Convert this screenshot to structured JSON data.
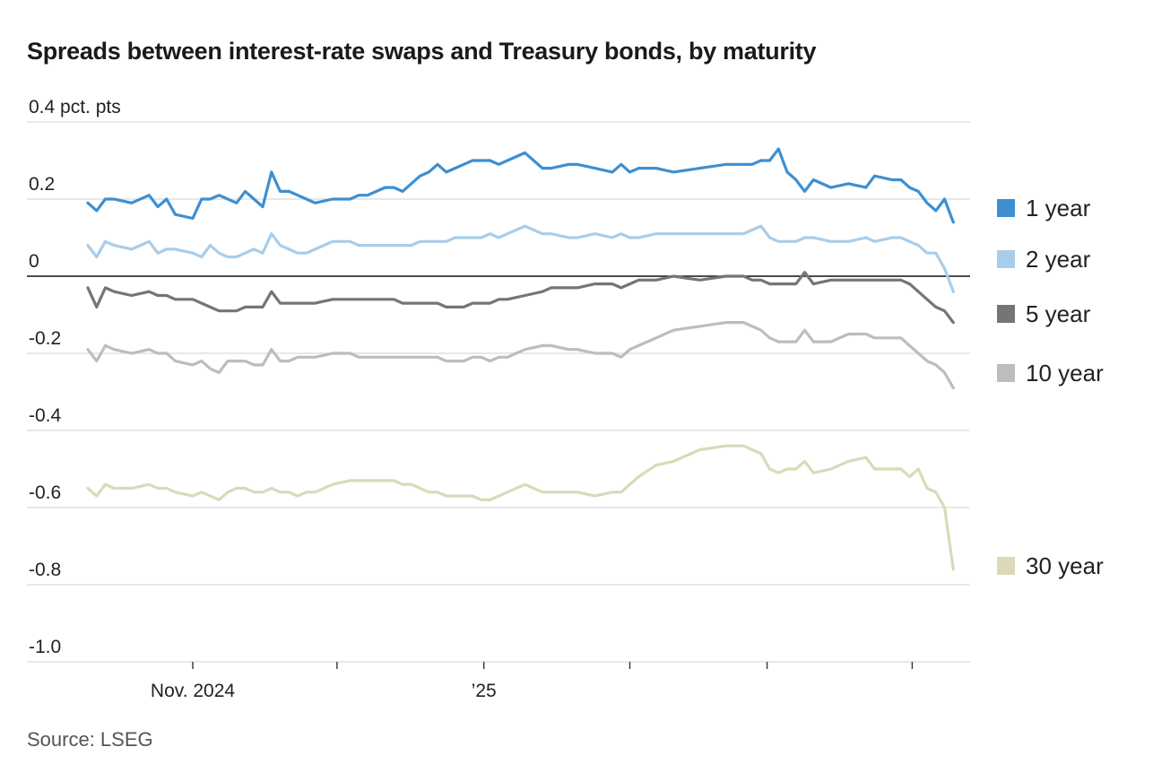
{
  "title": "Spreads between interest-rate swaps and Treasury bonds, by maturity",
  "source": "Source: LSEG",
  "chart_data": {
    "type": "line",
    "ylabel": "pct. pts",
    "ylim": [
      -1.0,
      0.4
    ],
    "yticks": [
      {
        "value": 0.4,
        "label": "0.4 pct. pts"
      },
      {
        "value": 0.2,
        "label": "0.2"
      },
      {
        "value": 0.0,
        "label": "0"
      },
      {
        "value": -0.2,
        "label": "-0.2"
      },
      {
        "value": -0.4,
        "label": "-0.4"
      },
      {
        "value": -0.6,
        "label": "-0.6"
      },
      {
        "value": -0.8,
        "label": "-0.8"
      },
      {
        "value": -1.0,
        "label": "-1.0"
      }
    ],
    "x_range": [
      0,
      100
    ],
    "xticks": [
      {
        "x": 12,
        "label": "Nov. 2024"
      },
      {
        "x": 28.5,
        "label": ""
      },
      {
        "x": 45.3,
        "label": "’25"
      },
      {
        "x": 62,
        "label": ""
      },
      {
        "x": 77.7,
        "label": ""
      },
      {
        "x": 94.3,
        "label": ""
      }
    ],
    "series": [
      {
        "name": "1 year",
        "color": "#3d8fd1",
        "x": [
          0,
          1,
          2,
          3,
          5,
          7,
          8,
          9,
          10,
          12,
          13,
          14,
          15,
          16,
          17,
          18,
          19,
          20,
          21,
          22,
          23,
          24,
          25,
          26,
          28,
          30,
          31,
          32,
          33,
          34,
          35,
          36,
          37,
          38,
          39,
          40,
          41,
          42,
          43,
          44,
          45,
          46,
          47,
          48,
          50,
          52,
          53,
          55,
          56,
          58,
          60,
          61,
          62,
          63,
          65,
          67,
          70,
          73,
          75,
          76,
          77,
          78,
          79,
          80,
          81,
          82,
          83,
          85,
          87,
          89,
          90,
          92,
          93,
          94,
          95,
          96,
          97,
          98,
          99
        ],
        "y": [
          0.19,
          0.17,
          0.2,
          0.2,
          0.19,
          0.21,
          0.18,
          0.2,
          0.16,
          0.15,
          0.2,
          0.2,
          0.21,
          0.2,
          0.19,
          0.22,
          0.2,
          0.18,
          0.27,
          0.22,
          0.22,
          0.21,
          0.2,
          0.19,
          0.2,
          0.2,
          0.21,
          0.21,
          0.22,
          0.23,
          0.23,
          0.22,
          0.24,
          0.26,
          0.27,
          0.29,
          0.27,
          0.28,
          0.29,
          0.3,
          0.3,
          0.3,
          0.29,
          0.3,
          0.32,
          0.28,
          0.28,
          0.29,
          0.29,
          0.28,
          0.27,
          0.29,
          0.27,
          0.28,
          0.28,
          0.27,
          0.28,
          0.29,
          0.29,
          0.29,
          0.3,
          0.3,
          0.33,
          0.27,
          0.25,
          0.22,
          0.25,
          0.23,
          0.24,
          0.23,
          0.26,
          0.25,
          0.25,
          0.23,
          0.22,
          0.19,
          0.17,
          0.2,
          0.14
        ]
      },
      {
        "name": "2 year",
        "color": "#a8cdea",
        "x": [
          0,
          1,
          2,
          3,
          5,
          7,
          8,
          9,
          10,
          12,
          13,
          14,
          15,
          16,
          17,
          18,
          19,
          20,
          21,
          22,
          23,
          24,
          25,
          26,
          28,
          30,
          31,
          32,
          33,
          34,
          35,
          36,
          37,
          38,
          39,
          40,
          41,
          42,
          43,
          44,
          45,
          46,
          47,
          48,
          50,
          52,
          53,
          55,
          56,
          58,
          60,
          61,
          62,
          63,
          65,
          67,
          70,
          73,
          75,
          76,
          77,
          78,
          79,
          80,
          81,
          82,
          83,
          85,
          87,
          89,
          90,
          92,
          93,
          94,
          95,
          96,
          97,
          98,
          99
        ],
        "y": [
          0.08,
          0.05,
          0.09,
          0.08,
          0.07,
          0.09,
          0.06,
          0.07,
          0.07,
          0.06,
          0.05,
          0.08,
          0.06,
          0.05,
          0.05,
          0.06,
          0.07,
          0.06,
          0.11,
          0.08,
          0.07,
          0.06,
          0.06,
          0.07,
          0.09,
          0.09,
          0.08,
          0.08,
          0.08,
          0.08,
          0.08,
          0.08,
          0.08,
          0.09,
          0.09,
          0.09,
          0.09,
          0.1,
          0.1,
          0.1,
          0.1,
          0.11,
          0.1,
          0.11,
          0.13,
          0.11,
          0.11,
          0.1,
          0.1,
          0.11,
          0.1,
          0.11,
          0.1,
          0.1,
          0.11,
          0.11,
          0.11,
          0.11,
          0.11,
          0.12,
          0.13,
          0.1,
          0.09,
          0.09,
          0.09,
          0.1,
          0.1,
          0.09,
          0.09,
          0.1,
          0.09,
          0.1,
          0.1,
          0.09,
          0.08,
          0.06,
          0.06,
          0.02,
          -0.04
        ]
      },
      {
        "name": "5 year",
        "color": "#757575",
        "x": [
          0,
          1,
          2,
          3,
          5,
          7,
          8,
          9,
          10,
          12,
          13,
          14,
          15,
          16,
          17,
          18,
          19,
          20,
          21,
          22,
          23,
          24,
          25,
          26,
          28,
          30,
          31,
          32,
          33,
          34,
          35,
          36,
          37,
          38,
          39,
          40,
          41,
          42,
          43,
          44,
          45,
          46,
          47,
          48,
          50,
          52,
          53,
          55,
          56,
          58,
          60,
          61,
          62,
          63,
          65,
          67,
          70,
          73,
          75,
          76,
          77,
          78,
          79,
          80,
          81,
          82,
          83,
          85,
          87,
          89,
          90,
          92,
          93,
          94,
          95,
          96,
          97,
          98,
          99
        ],
        "y": [
          -0.03,
          -0.08,
          -0.03,
          -0.04,
          -0.05,
          -0.04,
          -0.05,
          -0.05,
          -0.06,
          -0.06,
          -0.07,
          -0.08,
          -0.09,
          -0.09,
          -0.09,
          -0.08,
          -0.08,
          -0.08,
          -0.04,
          -0.07,
          -0.07,
          -0.07,
          -0.07,
          -0.07,
          -0.06,
          -0.06,
          -0.06,
          -0.06,
          -0.06,
          -0.06,
          -0.06,
          -0.07,
          -0.07,
          -0.07,
          -0.07,
          -0.07,
          -0.08,
          -0.08,
          -0.08,
          -0.07,
          -0.07,
          -0.07,
          -0.06,
          -0.06,
          -0.05,
          -0.04,
          -0.03,
          -0.03,
          -0.03,
          -0.02,
          -0.02,
          -0.03,
          -0.02,
          -0.01,
          -0.01,
          0.0,
          -0.01,
          0.0,
          0.0,
          -0.01,
          -0.01,
          -0.02,
          -0.02,
          -0.02,
          -0.02,
          0.01,
          -0.02,
          -0.01,
          -0.01,
          -0.01,
          -0.01,
          -0.01,
          -0.01,
          -0.02,
          -0.04,
          -0.06,
          -0.08,
          -0.09,
          -0.12
        ]
      },
      {
        "name": "10 year",
        "color": "#bdbdbd",
        "x": [
          0,
          1,
          2,
          3,
          5,
          7,
          8,
          9,
          10,
          12,
          13,
          14,
          15,
          16,
          17,
          18,
          19,
          20,
          21,
          22,
          23,
          24,
          25,
          26,
          28,
          30,
          31,
          32,
          33,
          34,
          35,
          36,
          37,
          38,
          39,
          40,
          41,
          42,
          43,
          44,
          45,
          46,
          47,
          48,
          50,
          52,
          53,
          55,
          56,
          58,
          60,
          61,
          62,
          63,
          65,
          67,
          70,
          73,
          75,
          76,
          77,
          78,
          79,
          80,
          81,
          82,
          83,
          85,
          87,
          89,
          90,
          92,
          93,
          94,
          95,
          96,
          97,
          98,
          99
        ],
        "y": [
          -0.19,
          -0.22,
          -0.18,
          -0.19,
          -0.2,
          -0.19,
          -0.2,
          -0.2,
          -0.22,
          -0.23,
          -0.22,
          -0.24,
          -0.25,
          -0.22,
          -0.22,
          -0.22,
          -0.23,
          -0.23,
          -0.19,
          -0.22,
          -0.22,
          -0.21,
          -0.21,
          -0.21,
          -0.2,
          -0.2,
          -0.21,
          -0.21,
          -0.21,
          -0.21,
          -0.21,
          -0.21,
          -0.21,
          -0.21,
          -0.21,
          -0.21,
          -0.22,
          -0.22,
          -0.22,
          -0.21,
          -0.21,
          -0.22,
          -0.21,
          -0.21,
          -0.19,
          -0.18,
          -0.18,
          -0.19,
          -0.19,
          -0.2,
          -0.2,
          -0.21,
          -0.19,
          -0.18,
          -0.16,
          -0.14,
          -0.13,
          -0.12,
          -0.12,
          -0.13,
          -0.14,
          -0.16,
          -0.17,
          -0.17,
          -0.17,
          -0.14,
          -0.17,
          -0.17,
          -0.15,
          -0.15,
          -0.16,
          -0.16,
          -0.16,
          -0.18,
          -0.2,
          -0.22,
          -0.23,
          -0.25,
          -0.29
        ]
      },
      {
        "name": "30 year",
        "color": "#dcd9b9",
        "x": [
          0,
          1,
          2,
          3,
          5,
          7,
          8,
          9,
          10,
          12,
          13,
          14,
          15,
          16,
          17,
          18,
          19,
          20,
          21,
          22,
          23,
          24,
          25,
          26,
          28,
          30,
          31,
          32,
          33,
          34,
          35,
          36,
          37,
          38,
          39,
          40,
          41,
          42,
          43,
          44,
          45,
          46,
          47,
          48,
          50,
          52,
          53,
          55,
          56,
          58,
          60,
          61,
          62,
          63,
          65,
          67,
          70,
          73,
          75,
          76,
          77,
          78,
          79,
          80,
          81,
          82,
          83,
          85,
          87,
          89,
          90,
          92,
          93,
          94,
          95,
          96,
          97,
          98,
          99
        ],
        "y": [
          -0.55,
          -0.57,
          -0.54,
          -0.55,
          -0.55,
          -0.54,
          -0.55,
          -0.55,
          -0.56,
          -0.57,
          -0.56,
          -0.57,
          -0.58,
          -0.56,
          -0.55,
          -0.55,
          -0.56,
          -0.56,
          -0.55,
          -0.56,
          -0.56,
          -0.57,
          -0.56,
          -0.56,
          -0.54,
          -0.53,
          -0.53,
          -0.53,
          -0.53,
          -0.53,
          -0.53,
          -0.54,
          -0.54,
          -0.55,
          -0.56,
          -0.56,
          -0.57,
          -0.57,
          -0.57,
          -0.57,
          -0.58,
          -0.58,
          -0.57,
          -0.56,
          -0.54,
          -0.56,
          -0.56,
          -0.56,
          -0.56,
          -0.57,
          -0.56,
          -0.56,
          -0.54,
          -0.52,
          -0.49,
          -0.48,
          -0.45,
          -0.44,
          -0.44,
          -0.45,
          -0.46,
          -0.5,
          -0.51,
          -0.5,
          -0.5,
          -0.48,
          -0.51,
          -0.5,
          -0.48,
          -0.47,
          -0.5,
          -0.5,
          -0.5,
          -0.52,
          -0.5,
          -0.55,
          -0.56,
          -0.6,
          -0.76
        ]
      }
    ]
  },
  "legend": [
    {
      "label": "1 year",
      "color": "#3d8fd1"
    },
    {
      "label": "2 year",
      "color": "#a8cdea"
    },
    {
      "label": "5 year",
      "color": "#757575"
    },
    {
      "label": "10 year",
      "color": "#bdbdbd"
    },
    {
      "label": "30 year",
      "color": "#dcd9b9"
    }
  ]
}
